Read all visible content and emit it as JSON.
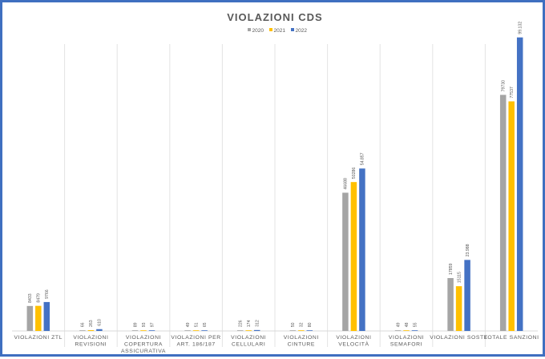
{
  "chart_data": {
    "type": "bar",
    "title": "VIOLAZIONI CDS",
    "categories": [
      [
        "VIOLAZIONI ZTL"
      ],
      [
        "VIOLAZIONI",
        "REVISIONI"
      ],
      [
        "VIOLAZIONI",
        "COPERTURA",
        "ASSICURATIVA"
      ],
      [
        "VIOLAZIONI PER",
        "ART. 186/187"
      ],
      [
        "VIOLAZIONI",
        "CELLULARI"
      ],
      [
        "VIOLAZIONI",
        "CINTURE"
      ],
      [
        "VIOLAZIONI",
        "VELOCITÀ"
      ],
      [
        "VIOLAZIONI",
        "SEMAFORI"
      ],
      [
        "VIOLAZIONI SOSTE"
      ],
      [
        "TOTALE SANZIONI"
      ]
    ],
    "series": [
      {
        "name": "2020",
        "color": "#a5a5a5",
        "values": [
          8433,
          66,
          89,
          49,
          226,
          50,
          46688,
          49,
          17859,
          79730
        ],
        "labels": [
          "8433",
          "66",
          "89",
          "49",
          "226",
          "50",
          "46688",
          "49",
          "17859",
          "79730"
        ]
      },
      {
        "name": "2021",
        "color": "#ffc000",
        "values": [
          8479,
          263,
          93,
          51,
          174,
          32,
          50286,
          48,
          15115,
          77537
        ],
        "labels": [
          "8479",
          "263",
          "93",
          "51",
          "174",
          "32",
          "50286",
          "48",
          "15115",
          "77537"
        ]
      },
      {
        "name": "2022",
        "color": "#4472c4",
        "values": [
          9766,
          610,
          97,
          65,
          312,
          80,
          54857,
          55,
          23988,
          99132
        ],
        "labels": [
          "9766",
          "610",
          "97",
          "65",
          "312",
          "80",
          "54.857",
          "55",
          "23.988",
          "99.132"
        ]
      }
    ],
    "ylim": [
      0,
      105000
    ],
    "grid": false,
    "legend_position": "top-center"
  }
}
